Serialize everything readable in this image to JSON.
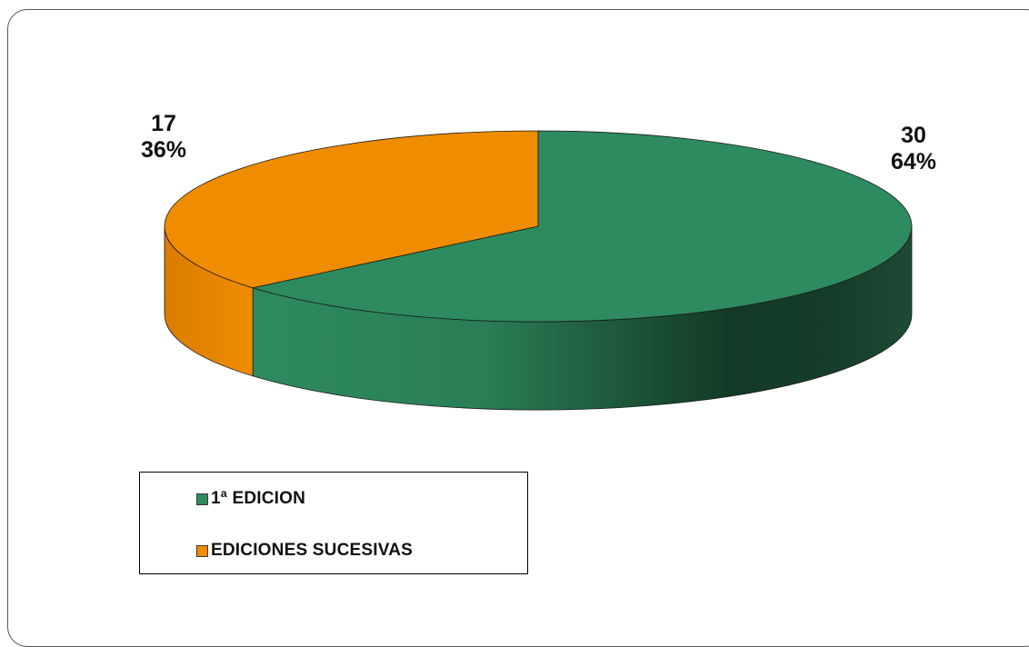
{
  "chart_data": {
    "type": "pie",
    "title": "",
    "style": "3d",
    "legend_position": "bottom-left",
    "slices": [
      {
        "name": "1ª EDICION",
        "value": 30,
        "percent": "64%",
        "color": "#2e8b5f",
        "side_dark": "#143a27"
      },
      {
        "name": "EDICIONES SUCESIVAS",
        "value": 17,
        "percent": "36%",
        "color": "#f08c00",
        "side_dark": "#cf7a00"
      }
    ]
  }
}
